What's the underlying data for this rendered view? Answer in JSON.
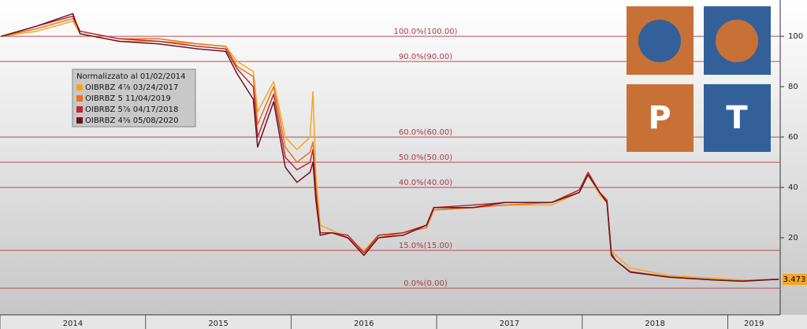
{
  "chart_data": {
    "type": "line",
    "legend_title": "Normalizzato al 01/02/2014",
    "x": [
      2014.01,
      2014.25,
      2014.5,
      2014.55,
      2014.82,
      2015.09,
      2015.36,
      2015.55,
      2015.63,
      2015.74,
      2015.77,
      2015.88,
      2015.96,
      2016.04,
      2016.13,
      2016.15,
      2016.17,
      2016.2,
      2016.28,
      2016.39,
      2016.5,
      2016.6,
      2016.77,
      2016.93,
      2016.98,
      2017.25,
      2017.47,
      2017.79,
      2017.98,
      2018.04,
      2018.12,
      2018.17,
      2018.2,
      2018.23,
      2018.33,
      2018.6,
      2018.88,
      2019.1,
      2019.28,
      2019.35
    ],
    "series": [
      {
        "name": "OIBRBZ 4⅞ 03/24/2017",
        "color": "#f5a623",
        "values": [
          100,
          102,
          106,
          101,
          98,
          98,
          97,
          96,
          90,
          86,
          70,
          82,
          60,
          55,
          60,
          78,
          45,
          25,
          23,
          20,
          15,
          21,
          22,
          25,
          31,
          32,
          33,
          33,
          38,
          45,
          37,
          34,
          15,
          13,
          8,
          5,
          4,
          3.2,
          3.4,
          3.473
        ]
      },
      {
        "name": "OIBRBZ 5 11/04/2019",
        "color": "#e8731c",
        "values": [
          100,
          103,
          107,
          102,
          99,
          99,
          97,
          96,
          88,
          84,
          65,
          80,
          56,
          50,
          54,
          58,
          40,
          22,
          22,
          20,
          14,
          20,
          22,
          24,
          31,
          32,
          33,
          34,
          39,
          46,
          38,
          34,
          13,
          11,
          6.5,
          4.4,
          3.4,
          2.8,
          3.4,
          3.6
        ]
      },
      {
        "name": "OIBRBZ 5⅞ 04/17/2018",
        "color": "#c0282f",
        "values": [
          100,
          104,
          108,
          102,
          99,
          98,
          96,
          95,
          87,
          80,
          60,
          77,
          52,
          47,
          50,
          55,
          38,
          22,
          22,
          21,
          14,
          21,
          22,
          25,
          32,
          33,
          34,
          34,
          39,
          46,
          38,
          35,
          14,
          11,
          6.5,
          4.4,
          3.4,
          2.8,
          3.4,
          3.6
        ]
      },
      {
        "name": "OIBRBZ 4⅝ 05/08/2020",
        "color": "#6b1420",
        "values": [
          100,
          104,
          109,
          101,
          98,
          97,
          95,
          94,
          85,
          75,
          56,
          74,
          48,
          42,
          46,
          50,
          35,
          21,
          22,
          20,
          13,
          20,
          21,
          25,
          32,
          32,
          34,
          34,
          38,
          45,
          38,
          34,
          13,
          11,
          6.3,
          4.3,
          3.3,
          2.7,
          3.3,
          3.5
        ]
      }
    ],
    "reference_lines": [
      {
        "value": 100,
        "label": "100.0%(100.00)"
      },
      {
        "value": 90,
        "label": "90.0%(90.00)"
      },
      {
        "value": 60,
        "label": "60.0%(60.00)"
      },
      {
        "value": 50,
        "label": "50.0%(50.00)"
      },
      {
        "value": 40,
        "label": "40.0%(40.00)"
      },
      {
        "value": 15,
        "label": "15.0%(15.00)"
      },
      {
        "value": 0,
        "label": "0.0%(0.00)"
      }
    ],
    "last_value": 3.473,
    "xlim": [
      2014,
      2019.36
    ],
    "xticks": [
      2014,
      2015,
      2016,
      2017,
      2018,
      2019
    ],
    "ylim": [
      -10.6,
      114.4
    ],
    "yticks": [
      20,
      40,
      60,
      80,
      100
    ]
  },
  "logo_letters": [
    "P",
    "T"
  ]
}
